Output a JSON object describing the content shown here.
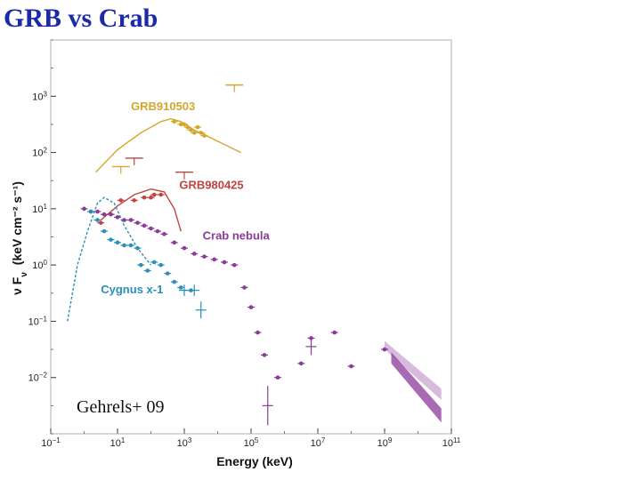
{
  "slide": {
    "title": "GRB vs Crab"
  },
  "chart_data": {
    "type": "scatter",
    "title": "",
    "xlabel": "Energy (keV)",
    "ylabel_main": "ν F",
    "ylabel_sub": "ν",
    "ylabel_units": "(keV cm⁻² s⁻¹)",
    "xscale": "log",
    "yscale": "log",
    "xlim_exp": [
      -1,
      11
    ],
    "ylim_exp": [
      -3,
      4
    ],
    "x_ticks": [
      {
        "exp": -1,
        "label": "10",
        "sup": "−1"
      },
      {
        "exp": 1,
        "label": "10",
        "sup": "1"
      },
      {
        "exp": 3,
        "label": "10",
        "sup": "3"
      },
      {
        "exp": 5,
        "label": "10",
        "sup": "5"
      },
      {
        "exp": 7,
        "label": "10",
        "sup": "7"
      },
      {
        "exp": 9,
        "label": "10",
        "sup": "9"
      },
      {
        "exp": 11,
        "label": "10",
        "sup": "11"
      }
    ],
    "y_ticks": [
      {
        "exp": -2,
        "label": "10",
        "sup": "−2"
      },
      {
        "exp": -1,
        "label": "10",
        "sup": "−1"
      },
      {
        "exp": 0,
        "label": "10",
        "sup": "0"
      },
      {
        "exp": 1,
        "label": "10",
        "sup": "1"
      },
      {
        "exp": 2,
        "label": "10",
        "sup": "2"
      },
      {
        "exp": 3,
        "label": "10",
        "sup": "3"
      }
    ],
    "annotation": "Gehrels+ 09",
    "series": [
      {
        "name": "GRB910503",
        "color": "#d4a72c",
        "label_at": [
          1.4,
          2.75
        ],
        "curve": [
          [
            0.35,
            1.65
          ],
          [
            1.0,
            2.05
          ],
          [
            1.7,
            2.35
          ],
          [
            2.3,
            2.55
          ],
          [
            2.6,
            2.6
          ],
          [
            2.9,
            2.55
          ],
          [
            3.3,
            2.4
          ],
          [
            4.0,
            2.2
          ],
          [
            4.7,
            2.0
          ]
        ],
        "points": [
          [
            2.7,
            2.55
          ],
          [
            2.9,
            2.5
          ],
          [
            3.0,
            2.5
          ],
          [
            3.1,
            2.45
          ],
          [
            3.2,
            2.4
          ],
          [
            3.3,
            2.35
          ],
          [
            3.4,
            2.45
          ],
          [
            3.5,
            2.35
          ],
          [
            3.6,
            2.3
          ]
        ],
        "upper_limits": [
          [
            1.1,
            1.75
          ],
          [
            4.5,
            3.2
          ]
        ]
      },
      {
        "name": "GRB980425",
        "color": "#c0453f",
        "label_at": [
          2.85,
          1.35
        ],
        "curve": [
          [
            0.5,
            0.8
          ],
          [
            1.0,
            1.05
          ],
          [
            1.5,
            1.25
          ],
          [
            2.0,
            1.35
          ],
          [
            2.4,
            1.3
          ],
          [
            2.7,
            1.0
          ],
          [
            2.9,
            0.6
          ]
        ],
        "points": [
          [
            0.5,
            0.75
          ],
          [
            0.8,
            0.9
          ],
          [
            1.1,
            1.15
          ],
          [
            1.5,
            1.15
          ],
          [
            1.8,
            1.2
          ],
          [
            2.0,
            1.2
          ],
          [
            2.1,
            1.25
          ],
          [
            2.3,
            1.25
          ]
        ],
        "upper_limits": [
          [
            1.5,
            1.9
          ],
          [
            3.0,
            1.65
          ]
        ]
      },
      {
        "name": "Crab nebula",
        "color": "#8b3a9a",
        "label_at": [
          3.55,
          0.45
        ],
        "points": [
          [
            0.0,
            1.0
          ],
          [
            0.2,
            0.95
          ],
          [
            0.4,
            0.95
          ],
          [
            0.6,
            0.9
          ],
          [
            0.8,
            0.9
          ],
          [
            1.0,
            0.85
          ],
          [
            1.2,
            0.8
          ],
          [
            1.4,
            0.8
          ],
          [
            1.6,
            0.75
          ],
          [
            1.8,
            0.7
          ],
          [
            2.0,
            0.65
          ],
          [
            2.2,
            0.6
          ],
          [
            2.4,
            0.55
          ],
          [
            2.7,
            0.4
          ],
          [
            3.0,
            0.3
          ],
          [
            3.3,
            0.2
          ],
          [
            3.6,
            0.15
          ],
          [
            3.9,
            0.1
          ],
          [
            4.2,
            0.05
          ],
          [
            4.5,
            0.0
          ],
          [
            4.8,
            -0.4
          ],
          [
            5.0,
            -0.75
          ],
          [
            5.2,
            -1.2
          ],
          [
            5.4,
            -1.6
          ],
          [
            5.8,
            -2.0
          ],
          [
            6.5,
            -1.75
          ],
          [
            6.8,
            -1.3
          ],
          [
            7.5,
            -1.2
          ],
          [
            8.0,
            -1.8
          ],
          [
            9.0,
            -1.5
          ]
        ],
        "error_bars": [
          [
            5.5,
            -2.5,
            0.35
          ],
          [
            6.8,
            -1.45,
            0.15
          ]
        ],
        "bands": [
          {
            "x0": 9.0,
            "x1": 10.7,
            "y0_lo": -1.35,
            "y0_hi": -1.5,
            "y1_lo": -2.2,
            "y1_hi": -2.4
          },
          {
            "x0": 9.2,
            "x1": 10.7,
            "y0_lo": -1.55,
            "y0_hi": -1.75,
            "y1_lo": -2.55,
            "y1_hi": -2.8
          }
        ]
      },
      {
        "name": "Cygnus x-1",
        "color": "#2b8fb8",
        "label_at": [
          0.5,
          -0.5
        ],
        "curve": [
          [
            -0.5,
            -1.0
          ],
          [
            -0.2,
            0.0
          ],
          [
            0.1,
            0.6
          ],
          [
            0.4,
            1.1
          ],
          [
            0.6,
            1.2
          ],
          [
            0.9,
            1.1
          ],
          [
            1.2,
            0.7
          ],
          [
            1.6,
            0.3
          ],
          [
            2.0,
            0.0
          ]
        ],
        "points": [
          [
            0.2,
            0.95
          ],
          [
            0.4,
            0.8
          ],
          [
            0.6,
            0.6
          ],
          [
            0.8,
            0.45
          ],
          [
            1.0,
            0.4
          ],
          [
            1.2,
            0.35
          ],
          [
            1.4,
            0.35
          ],
          [
            1.6,
            0.3
          ],
          [
            1.7,
            0.0
          ],
          [
            1.9,
            -0.1
          ],
          [
            2.1,
            0.05
          ],
          [
            2.3,
            0.0
          ],
          [
            2.5,
            -0.15
          ],
          [
            2.7,
            -0.3
          ],
          [
            2.9,
            -0.4
          ],
          [
            3.2,
            -0.45
          ]
        ],
        "error_bars": [
          [
            3.0,
            -0.45,
            0.1
          ],
          [
            3.3,
            -0.45,
            0.1
          ],
          [
            3.5,
            -0.8,
            0.15
          ]
        ]
      }
    ]
  }
}
